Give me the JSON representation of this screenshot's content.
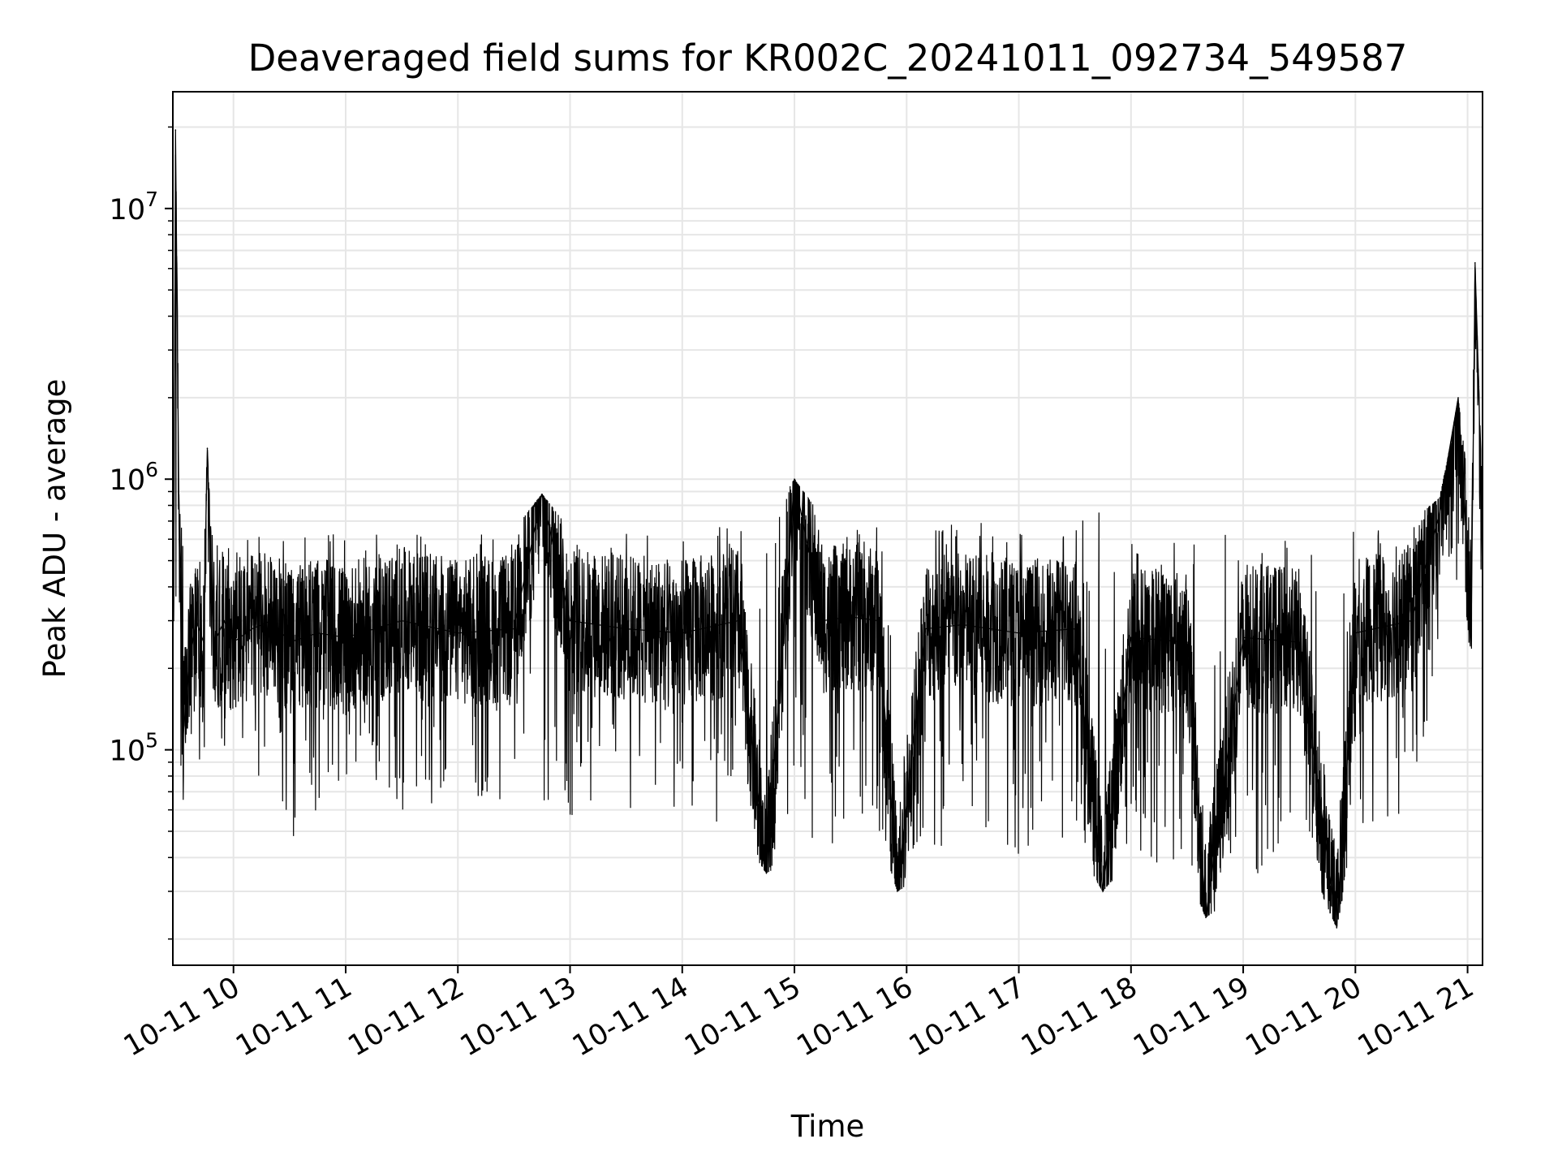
{
  "chart_data": {
    "type": "line",
    "title": "Deaveraged field sums for KR002C_20241011_092734_549587",
    "xlabel": "Time",
    "ylabel": "Peak ADU - average",
    "x_range": [
      "2024-10-11 09:27:34",
      "2024-10-11 21:08:00"
    ],
    "xlim": [
      "2024-10-11 09:27:34",
      "2024-10-11 21:08:00"
    ],
    "ylim": [
      16000,
      27000000
    ],
    "y_scale": "log",
    "grid": true,
    "line_color": "#000000",
    "x_ticks": [
      {
        "value": "2024-10-11 10:00",
        "label": "10-11 10"
      },
      {
        "value": "2024-10-11 11:00",
        "label": "10-11 11"
      },
      {
        "value": "2024-10-11 12:00",
        "label": "10-11 12"
      },
      {
        "value": "2024-10-11 13:00",
        "label": "10-11 13"
      },
      {
        "value": "2024-10-11 14:00",
        "label": "10-11 14"
      },
      {
        "value": "2024-10-11 15:00",
        "label": "10-11 15"
      },
      {
        "value": "2024-10-11 16:00",
        "label": "10-11 16"
      },
      {
        "value": "2024-10-11 17:00",
        "label": "10-11 17"
      },
      {
        "value": "2024-10-11 18:00",
        "label": "10-11 18"
      },
      {
        "value": "2024-10-11 19:00",
        "label": "10-11 19"
      },
      {
        "value": "2024-10-11 20:00",
        "label": "10-11 20"
      },
      {
        "value": "2024-10-11 21:00",
        "label": "10-11 21"
      }
    ],
    "y_ticks": [
      {
        "value": 100000,
        "base": "10",
        "exp": "5"
      },
      {
        "value": 1000000,
        "base": "10",
        "exp": "6"
      },
      {
        "value": 10000000,
        "base": "10",
        "exp": "7"
      }
    ],
    "series": [
      {
        "x": [
          "2024-10-11 09:28",
          "2024-10-11 09:29",
          "2024-10-11 09:31",
          "2024-10-11 09:33",
          "2024-10-11 09:36",
          "2024-10-11 09:40",
          "2024-10-11 09:44",
          "2024-10-11 09:46",
          "2024-10-11 09:48",
          "2024-10-11 09:50",
          "2024-10-11 09:55",
          "2024-10-11 10:00",
          "2024-10-11 10:10",
          "2024-10-11 10:20",
          "2024-10-11 10:30",
          "2024-10-11 10:45",
          "2024-10-11 11:00",
          "2024-10-11 11:30",
          "2024-10-11 12:00",
          "2024-10-11 12:30",
          "2024-10-11 12:45",
          "2024-10-11 13:00",
          "2024-10-11 13:30",
          "2024-10-11 14:00",
          "2024-10-11 14:30",
          "2024-10-11 14:45",
          "2024-10-11 15:00",
          "2024-10-11 15:15",
          "2024-10-11 15:30",
          "2024-10-11 15:45",
          "2024-10-11 15:55",
          "2024-10-11 16:10",
          "2024-10-11 16:30",
          "2024-10-11 17:00",
          "2024-10-11 17:30",
          "2024-10-11 17:45",
          "2024-10-11 18:00",
          "2024-10-11 18:30",
          "2024-10-11 18:40",
          "2024-10-11 19:00",
          "2024-10-11 19:30",
          "2024-10-11 19:50",
          "2024-10-11 20:00",
          "2024-10-11 20:30",
          "2024-10-11 20:45",
          "2024-10-11 20:50",
          "2024-10-11 20:55",
          "2024-10-11 21:00",
          "2024-10-11 21:02",
          "2024-10-11 21:04",
          "2024-10-11 21:06",
          "2024-10-11 21:08"
        ],
        "y": [
          300000,
          19500000,
          600000,
          110000,
          200000,
          300000,
          250000,
          1300000,
          400000,
          250000,
          300000,
          250000,
          280000,
          300000,
          250000,
          270000,
          260000,
          300000,
          270000,
          280000,
          880000,
          300000,
          280000,
          270000,
          300000,
          35000,
          1000000,
          300000,
          310000,
          300000,
          30000,
          280000,
          290000,
          270000,
          280000,
          30000,
          260000,
          250000,
          24000,
          260000,
          250000,
          22000,
          270000,
          300000,
          750000,
          1250000,
          2000000,
          500000,
          300000,
          6300000,
          2200000,
          450000
        ],
        "upper_envelope": [
          500000,
          19500000,
          950000,
          550000,
          520000,
          560000,
          540000,
          1300000,
          650000,
          560000,
          620000,
          600000,
          640000,
          620000,
          600000,
          650000,
          620000,
          640000,
          630000,
          650000,
          880000,
          650000,
          640000,
          660000,
          700000,
          680000,
          1000000,
          720000,
          740000,
          700000,
          700000,
          680000,
          700000,
          680000,
          700000,
          800000,
          650000,
          620000,
          650000,
          620000,
          600000,
          620000,
          650000,
          700000,
          850000,
          1250000,
          2000000,
          1000000,
          900000,
          6300000,
          2200000,
          800000
        ],
        "lower_envelope": [
          100000,
          300000,
          110000,
          58000,
          60000,
          90000,
          80000,
          180000,
          110000,
          90000,
          100000,
          95000,
          60000,
          90000,
          45000,
          60000,
          80000,
          60000,
          55000,
          60000,
          55000,
          50000,
          60000,
          60000,
          50000,
          35000,
          40000,
          40000,
          45000,
          50000,
          30000,
          35000,
          45000,
          40000,
          45000,
          30000,
          40000,
          35000,
          24000,
          30000,
          45000,
          22000,
          50000,
          60000,
          150000,
          500000,
          300000,
          250000,
          230000,
          250000,
          300000,
          350000
        ]
      }
    ]
  }
}
